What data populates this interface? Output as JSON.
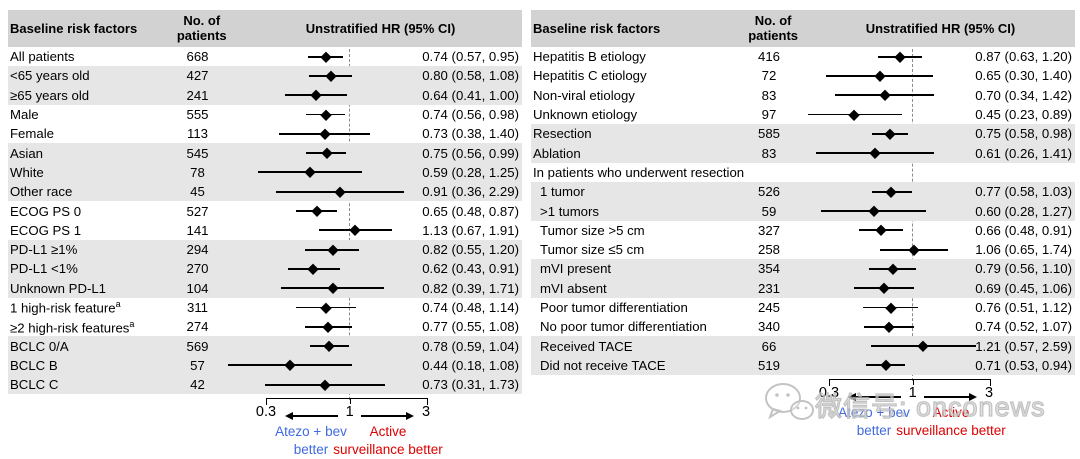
{
  "colors": {
    "header_bg": "#d2d2d2",
    "stripe": "#e6e6e6",
    "ref_dash": "#8a8a8a",
    "left_arm_blue": "#4169E1",
    "right_arm_red": "#DD0000"
  },
  "watermark": {
    "icon": "wechat-bubbles-icon",
    "text": "微信号: onconews"
  },
  "chart_data": [
    {
      "type": "forest",
      "columns": {
        "label": "Baseline risk factors",
        "n": "No. of patients",
        "hr": "Unstratified HR (95% CI)"
      },
      "axis": {
        "scale": "log",
        "xlim": [
          0.3,
          3
        ],
        "ticks": [
          "0.3",
          "1",
          "3"
        ],
        "ref": 1,
        "left_label_lines": [
          "Atezo + bev",
          "better"
        ],
        "right_label_lines": [
          "Active",
          "surveillance better"
        ]
      },
      "rows": [
        {
          "label": "All patients",
          "n": "668",
          "hr": 0.74,
          "lo": 0.57,
          "hi": 0.95,
          "hr_text": "0.74 (0.57, 0.95)",
          "shaded": false
        },
        {
          "label": "<65 years old",
          "n": "427",
          "hr": 0.8,
          "lo": 0.58,
          "hi": 1.08,
          "hr_text": "0.80 (0.58, 1.08)",
          "shaded": true
        },
        {
          "label": "≥65 years old",
          "n": "241",
          "hr": 0.64,
          "lo": 0.41,
          "hi": 1.0,
          "hr_text": "0.64 (0.41, 1.00)",
          "shaded": true
        },
        {
          "label": "Male",
          "n": "555",
          "hr": 0.74,
          "lo": 0.56,
          "hi": 0.98,
          "hr_text": "0.74 (0.56, 0.98)",
          "shaded": false
        },
        {
          "label": "Female",
          "n": "113",
          "hr": 0.73,
          "lo": 0.38,
          "hi": 1.4,
          "hr_text": "0.73 (0.38, 1.40)",
          "shaded": false
        },
        {
          "label": "Asian",
          "n": "545",
          "hr": 0.75,
          "lo": 0.56,
          "hi": 0.99,
          "hr_text": "0.75 (0.56, 0.99)",
          "shaded": true
        },
        {
          "label": "White",
          "n": "78",
          "hr": 0.59,
          "lo": 0.28,
          "hi": 1.25,
          "hr_text": "0.59 (0.28, 1.25)",
          "shaded": true
        },
        {
          "label": "Other race",
          "n": "45",
          "hr": 0.91,
          "lo": 0.36,
          "hi": 2.29,
          "hr_text": "0.91 (0.36, 2.29)",
          "shaded": true
        },
        {
          "label": "ECOG PS 0",
          "n": "527",
          "hr": 0.65,
          "lo": 0.48,
          "hi": 0.87,
          "hr_text": "0.65 (0.48, 0.87)",
          "shaded": false
        },
        {
          "label": "ECOG PS 1",
          "n": "141",
          "hr": 1.13,
          "lo": 0.67,
          "hi": 1.91,
          "hr_text": "1.13 (0.67, 1.91)",
          "shaded": false
        },
        {
          "label": "PD-L1 ≥1%",
          "n": "294",
          "hr": 0.82,
          "lo": 0.55,
          "hi": 1.2,
          "hr_text": "0.82 (0.55, 1.20)",
          "shaded": true
        },
        {
          "label": "PD-L1 <1%",
          "n": "270",
          "hr": 0.62,
          "lo": 0.43,
          "hi": 0.91,
          "hr_text": "0.62 (0.43, 0.91)",
          "shaded": true
        },
        {
          "label": "Unknown PD-L1",
          "n": "104",
          "hr": 0.82,
          "lo": 0.39,
          "hi": 1.71,
          "hr_text": "0.82 (0.39, 1.71)",
          "shaded": true
        },
        {
          "label": "1 high-risk feature",
          "sup": "a",
          "n": "311",
          "hr": 0.74,
          "lo": 0.48,
          "hi": 1.14,
          "hr_text": "0.74 (0.48, 1.14)",
          "shaded": false
        },
        {
          "label": "≥2 high-risk features",
          "sup": "a",
          "n": "274",
          "hr": 0.77,
          "lo": 0.55,
          "hi": 1.08,
          "hr_text": "0.77 (0.55, 1.08)",
          "shaded": false
        },
        {
          "label": "BCLC 0/A",
          "n": "569",
          "hr": 0.78,
          "lo": 0.59,
          "hi": 1.04,
          "hr_text": "0.78 (0.59, 1.04)",
          "shaded": true
        },
        {
          "label": "BCLC B",
          "n": "57",
          "hr": 0.44,
          "lo": 0.18,
          "hi": 1.08,
          "hr_text": "0.44 (0.18, 1.08)",
          "shaded": true
        },
        {
          "label": "BCLC C",
          "n": "42",
          "hr": 0.73,
          "lo": 0.31,
          "hi": 1.73,
          "hr_text": "0.73 (0.31, 1.73)",
          "shaded": true
        }
      ]
    },
    {
      "type": "forest",
      "columns": {
        "label": "Baseline risk factors",
        "n": "No. of patients",
        "hr": "Unstratified HR (95% CI)"
      },
      "axis": {
        "scale": "log",
        "xlim": [
          0.3,
          3
        ],
        "ticks": [
          "0.3",
          "1",
          "3"
        ],
        "ref": 1,
        "left_label_lines": [
          "Atezo + bev",
          "better"
        ],
        "right_label_lines": [
          "Active",
          "surveillance better"
        ]
      },
      "rows": [
        {
          "label": "Hepatitis B etiology",
          "n": "416",
          "hr": 0.87,
          "lo": 0.63,
          "hi": 1.2,
          "hr_text": "0.87 (0.63, 1.20)",
          "shaded": false
        },
        {
          "label": "Hepatitis C etiology",
          "n": "72",
          "hr": 0.65,
          "lo": 0.3,
          "hi": 1.4,
          "hr_text": "0.65 (0.30, 1.40)",
          "shaded": false
        },
        {
          "label": "Non-viral etiology",
          "n": "83",
          "hr": 0.7,
          "lo": 0.34,
          "hi": 1.42,
          "hr_text": "0.70 (0.34, 1.42)",
          "shaded": false
        },
        {
          "label": "Unknown etiology",
          "n": "97",
          "hr": 0.45,
          "lo": 0.23,
          "hi": 0.89,
          "hr_text": "0.45 (0.23, 0.89)",
          "shaded": false
        },
        {
          "label": "Resection",
          "n": "585",
          "hr": 0.75,
          "lo": 0.58,
          "hi": 0.98,
          "hr_text": "0.75 (0.58, 0.98)",
          "shaded": true
        },
        {
          "label": "Ablation",
          "n": "83",
          "hr": 0.61,
          "lo": 0.26,
          "hi": 1.41,
          "hr_text": "0.61 (0.26, 1.41)",
          "shaded": true
        },
        {
          "label": "In patients who underwent resection",
          "section": true,
          "shaded": false
        },
        {
          "label": "1 tumor",
          "n": "526",
          "hr": 0.77,
          "lo": 0.58,
          "hi": 1.03,
          "hr_text": "0.77 (0.58, 1.03)",
          "shaded": true,
          "indent": true
        },
        {
          "label": ">1 tumors",
          "n": "59",
          "hr": 0.6,
          "lo": 0.28,
          "hi": 1.27,
          "hr_text": "0.60 (0.28, 1.27)",
          "shaded": true,
          "indent": true
        },
        {
          "label": "Tumor size >5 cm",
          "n": "327",
          "hr": 0.66,
          "lo": 0.48,
          "hi": 0.91,
          "hr_text": "0.66 (0.48, 0.91)",
          "shaded": false,
          "indent": true
        },
        {
          "label": "Tumor size ≤5 cm",
          "n": "258",
          "hr": 1.06,
          "lo": 0.65,
          "hi": 1.74,
          "hr_text": "1.06 (0.65, 1.74)",
          "shaded": false,
          "indent": true
        },
        {
          "label": "mVI present",
          "n": "354",
          "hr": 0.79,
          "lo": 0.56,
          "hi": 1.1,
          "hr_text": "0.79 (0.56, 1.10)",
          "shaded": true,
          "indent": true
        },
        {
          "label": "mVI absent",
          "n": "231",
          "hr": 0.69,
          "lo": 0.45,
          "hi": 1.06,
          "hr_text": "0.69 (0.45, 1.06)",
          "shaded": true,
          "indent": true
        },
        {
          "label": "Poor tumor differentiation",
          "n": "245",
          "hr": 0.76,
          "lo": 0.51,
          "hi": 1.12,
          "hr_text": "0.76 (0.51, 1.12)",
          "shaded": false,
          "indent": true
        },
        {
          "label": "No poor tumor differentiation",
          "n": "340",
          "hr": 0.74,
          "lo": 0.52,
          "hi": 1.07,
          "hr_text": "0.74 (0.52, 1.07)",
          "shaded": false,
          "indent": true
        },
        {
          "label": "Received TACE",
          "n": "66",
          "hr": 1.21,
          "lo": 0.57,
          "hi": 2.59,
          "hr_text": "1.21 (0.57, 2.59)",
          "shaded": true,
          "indent": true
        },
        {
          "label": "Did not receive TACE",
          "n": "519",
          "hr": 0.71,
          "lo": 0.53,
          "hi": 0.94,
          "hr_text": "0.71 (0.53, 0.94)",
          "shaded": true,
          "indent": true
        }
      ]
    }
  ]
}
